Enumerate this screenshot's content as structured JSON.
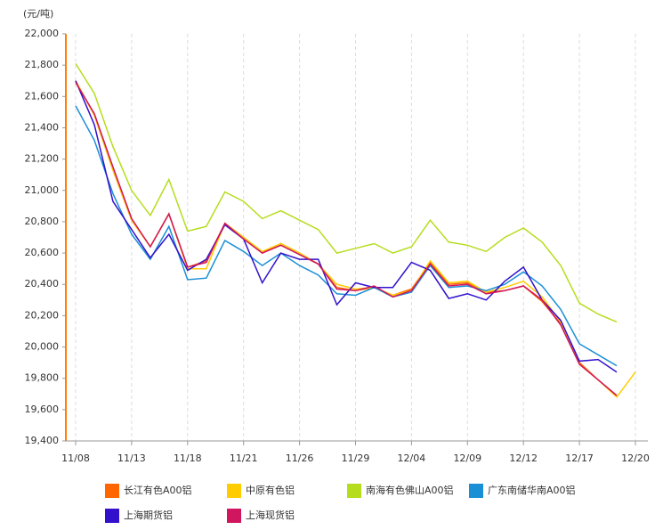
{
  "chart_data": {
    "type": "line",
    "y_label": "(元/吨)",
    "categories": [
      "11/08",
      null,
      null,
      "11/13",
      null,
      null,
      "11/18",
      null,
      null,
      "11/21",
      null,
      null,
      "11/26",
      null,
      null,
      "11/29",
      null,
      null,
      "12/04",
      null,
      null,
      "12/09",
      null,
      null,
      "12/12",
      null,
      null,
      "12/17",
      null,
      null,
      "12/20"
    ],
    "ylim": [
      19400,
      22000
    ],
    "yticks": [
      {
        "value": 19400,
        "label": "19,400"
      },
      {
        "value": 19600,
        "label": "19,600"
      },
      {
        "value": 19800,
        "label": "19,800"
      },
      {
        "value": 20000,
        "label": "20,000"
      },
      {
        "value": 20200,
        "label": "20,200"
      },
      {
        "value": 20400,
        "label": "20,400"
      },
      {
        "value": 20600,
        "label": "20,600"
      },
      {
        "value": 20800,
        "label": "20,800"
      },
      {
        "value": 21000,
        "label": "21,000"
      },
      {
        "value": 21200,
        "label": "21,200"
      },
      {
        "value": 21400,
        "label": "21,400"
      },
      {
        "value": 21600,
        "label": "21,600"
      },
      {
        "value": 21800,
        "label": "21,800"
      },
      {
        "value": 22000,
        "label": "22,000"
      }
    ],
    "grid": true,
    "series": [
      {
        "name": "长江有色A00铝",
        "color": "#ff6600",
        "values": [
          21700,
          21480,
          21130,
          20810,
          20640,
          20850,
          20510,
          20550,
          20790,
          20700,
          20600,
          20660,
          20600,
          20530,
          20380,
          20360,
          20380,
          20330,
          20370,
          20540,
          20400,
          20410,
          20350,
          20360,
          20390,
          20290,
          20150,
          19900,
          19790,
          19690,
          null
        ]
      },
      {
        "name": "中原有色铝",
        "color": "#ffcc00",
        "values": [
          21700,
          21480,
          21130,
          20810,
          20640,
          20850,
          20500,
          20500,
          20790,
          20700,
          20610,
          20660,
          20600,
          20530,
          20400,
          20370,
          20380,
          20330,
          20360,
          20550,
          20410,
          20420,
          20350,
          20380,
          20420,
          20320,
          20160,
          19890,
          19790,
          19680,
          19840
        ]
      },
      {
        "name": "南海有色佛山A00铝",
        "color": "#b5dd1d",
        "values": [
          21810,
          21620,
          21280,
          21000,
          20840,
          21070,
          20740,
          20770,
          20990,
          20930,
          20820,
          20870,
          20810,
          20750,
          20600,
          20630,
          20660,
          20600,
          20640,
          20810,
          20670,
          20650,
          20610,
          20700,
          20760,
          20670,
          20520,
          20280,
          20210,
          20160,
          null
        ]
      },
      {
        "name": "广东南储华南A00铝",
        "color": "#1b8fd6",
        "values": [
          21540,
          21320,
          20980,
          20720,
          20560,
          20770,
          20430,
          20440,
          20680,
          20610,
          20520,
          20600,
          20520,
          20460,
          20340,
          20330,
          20380,
          20320,
          20350,
          20520,
          20380,
          20390,
          20360,
          20400,
          20480,
          20390,
          20240,
          20020,
          19950,
          19880,
          null
        ]
      },
      {
        "name": "上海期货铝",
        "color": "#3311cc",
        "values": [
          21700,
          21420,
          20930,
          20750,
          20570,
          20720,
          20490,
          20560,
          20780,
          20690,
          20410,
          20600,
          20560,
          20560,
          20270,
          20410,
          20380,
          20380,
          20540,
          20490,
          20310,
          20340,
          20300,
          20420,
          20510,
          20300,
          20170,
          19910,
          19920,
          19840,
          null
        ]
      },
      {
        "name": "上海现货铝",
        "color": "#d0165e",
        "values": [
          21690,
          21490,
          21150,
          20820,
          20640,
          20850,
          20510,
          20540,
          20790,
          20690,
          20600,
          20650,
          20590,
          20530,
          20370,
          20360,
          20390,
          20320,
          20360,
          20530,
          20390,
          20400,
          20340,
          20360,
          20390,
          20300,
          20140,
          19890,
          19790,
          19690,
          null
        ]
      }
    ]
  }
}
